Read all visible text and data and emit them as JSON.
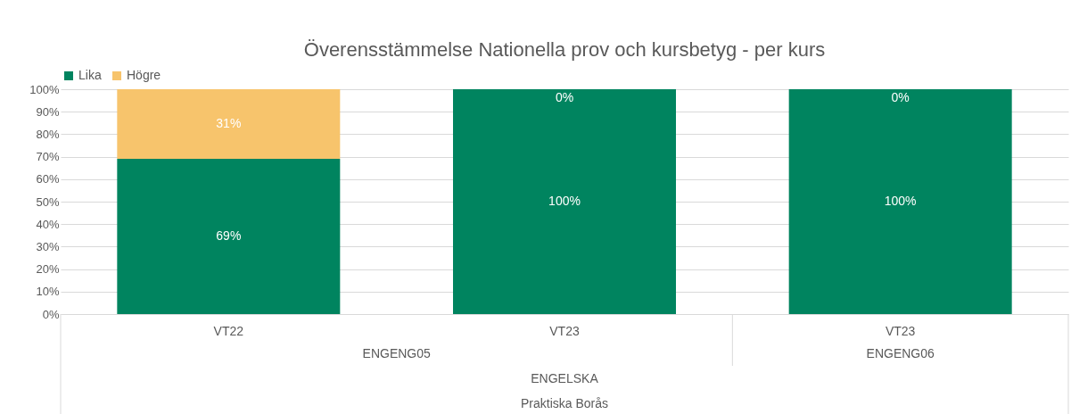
{
  "chart_data": {
    "type": "bar",
    "title": "Överensstämmelse Nationella prov och kursbetyg - per kurs",
    "categories": [
      "VT22",
      "VT23",
      "VT23"
    ],
    "stacked": true,
    "series": [
      {
        "name": "Lika",
        "color": "#00845f",
        "values": [
          69,
          100,
          100
        ],
        "value_labels": [
          "69%",
          "100%",
          "100%"
        ]
      },
      {
        "name": "Högre",
        "color": "#f7c46c",
        "values": [
          31,
          0,
          0
        ],
        "value_labels": [
          "31%",
          "0%",
          "0%"
        ]
      }
    ],
    "ylim": [
      0,
      100
    ],
    "yticks": [
      {
        "value": 0,
        "label": "0%"
      },
      {
        "value": 10,
        "label": "10%"
      },
      {
        "value": 20,
        "label": "20%"
      },
      {
        "value": 30,
        "label": "30%"
      },
      {
        "value": 40,
        "label": "40%"
      },
      {
        "value": 50,
        "label": "50%"
      },
      {
        "value": 60,
        "label": "60%"
      },
      {
        "value": 70,
        "label": "70%"
      },
      {
        "value": 80,
        "label": "80%"
      },
      {
        "value": 90,
        "label": "90%"
      },
      {
        "value": 100,
        "label": "100%"
      }
    ],
    "grid": "y",
    "legend": "top",
    "annotations": [
      "ENGENG05",
      "ENGENG06",
      "ENGELSKA",
      "Praktiska Borås"
    ]
  }
}
